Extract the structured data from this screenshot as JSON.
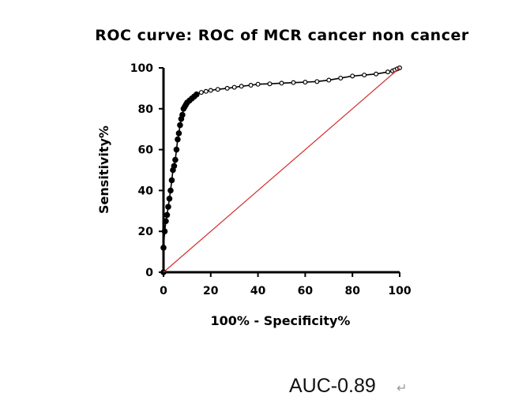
{
  "chart_data": {
    "type": "line",
    "title": "ROC curve: ROC of MCR cancer non cancer",
    "xlabel": "100% - Specificity%",
    "ylabel": "Sensitivity%",
    "xlim": [
      0,
      100
    ],
    "ylim": [
      0,
      100
    ],
    "x_ticks": [
      "0",
      "20",
      "40",
      "60",
      "80",
      "100"
    ],
    "y_ticks": [
      "0",
      "20",
      "40",
      "60",
      "80",
      "100"
    ],
    "grid": false,
    "legend": "none",
    "series": [
      {
        "color": "#000000",
        "marker": "open-circle",
        "x": [
          0,
          0,
          0.5,
          1,
          1.5,
          2,
          2.5,
          3,
          3.5,
          4,
          4.5,
          5,
          5.5,
          6,
          6.5,
          7,
          7.5,
          8,
          8.5,
          9,
          9.5,
          10,
          11,
          12,
          13,
          14,
          16,
          18,
          20,
          23,
          27,
          30,
          33,
          37,
          40,
          45,
          50,
          55,
          60,
          65,
          70,
          75,
          80,
          85,
          90,
          95,
          97,
          98,
          99,
          100
        ],
        "y": [
          0,
          12,
          20,
          25,
          28,
          32,
          36,
          40,
          45,
          50,
          52,
          55,
          60,
          65,
          68,
          72,
          75,
          77,
          80,
          81,
          82,
          83,
          84,
          85,
          86,
          87,
          88,
          88.5,
          89,
          89.5,
          90,
          90.5,
          91,
          91.5,
          92,
          92.2,
          92.5,
          92.8,
          93,
          93.3,
          94,
          95,
          96,
          96.5,
          97,
          98,
          98.5,
          99,
          99.5,
          100
        ]
      },
      {
        "color": "#d32f2f",
        "marker": "none",
        "x": [
          0,
          100
        ],
        "y": [
          0,
          100
        ]
      }
    ],
    "annotation": "AUC-0.89",
    "annotation_mark": "↵"
  }
}
